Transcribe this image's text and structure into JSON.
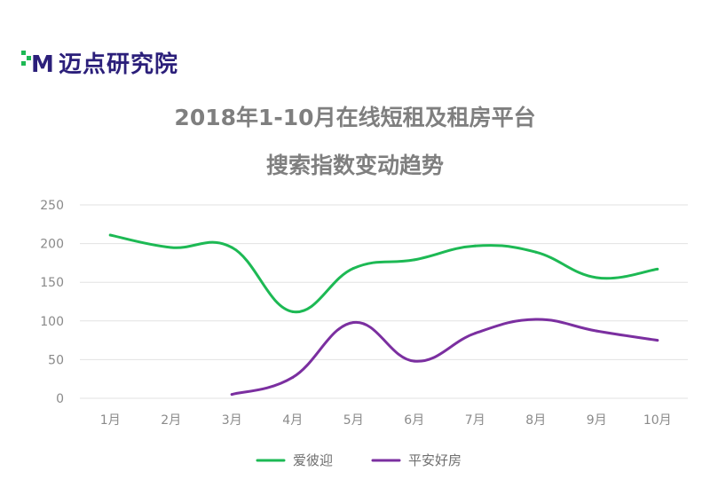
{
  "brand": {
    "name": "迈点研究院",
    "logo_mark": "M"
  },
  "colors": {
    "series_1": "#1db954",
    "series_2": "#7b2fa0",
    "grid": "#e2e2e2",
    "text": "#7f7f7f"
  },
  "chart_data": {
    "type": "line",
    "title_line_1": "2018年1-10月在线短租及租房平台",
    "title_line_2": "搜索指数变动趋势",
    "categories": [
      "1月",
      "2月",
      "3月",
      "4月",
      "5月",
      "6月",
      "7月",
      "8月",
      "9月",
      "10月"
    ],
    "ylim": [
      0,
      250
    ],
    "yticks": [
      0,
      50,
      100,
      150,
      200,
      250
    ],
    "grid": true,
    "legend_position": "bottom",
    "series": [
      {
        "name": "爱彼迎",
        "color": "#1db954",
        "values": [
          211,
          195,
          195,
          112,
          168,
          179,
          197,
          189,
          156,
          167
        ]
      },
      {
        "name": "平安好房",
        "color": "#7b2fa0",
        "values": [
          null,
          null,
          5,
          27,
          98,
          48,
          84,
          102,
          87,
          75
        ]
      }
    ]
  }
}
